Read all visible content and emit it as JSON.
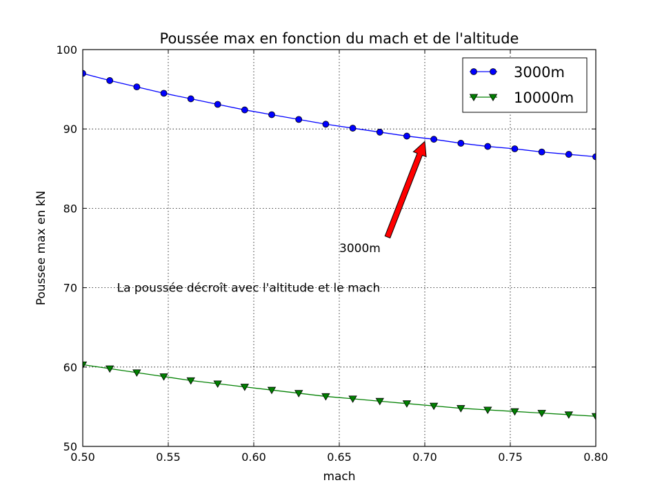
{
  "chart_data": {
    "type": "line",
    "title": "Poussée max en fonction du mach et de l'altitude",
    "xlabel": "mach",
    "ylabel": "Poussee max en kN",
    "xlim": [
      0.5,
      0.8
    ],
    "ylim": [
      50,
      100
    ],
    "grid": true,
    "legend_position": "top-right",
    "xticks": [
      "0.50",
      "0.55",
      "0.60",
      "0.65",
      "0.70",
      "0.75",
      "0.80"
    ],
    "yticks": [
      "50",
      "60",
      "70",
      "80",
      "90",
      "100"
    ],
    "x": [
      0.5,
      0.5158,
      0.5316,
      0.5474,
      0.5632,
      0.5789,
      0.5947,
      0.6105,
      0.6263,
      0.6421,
      0.6579,
      0.6737,
      0.6895,
      0.7053,
      0.7211,
      0.7368,
      0.7526,
      0.7684,
      0.7842,
      0.8
    ],
    "series": [
      {
        "name": "3000m",
        "color": "#0000ff",
        "marker": "circle",
        "values": [
          97.0,
          96.1,
          95.3,
          94.5,
          93.8,
          93.1,
          92.4,
          91.8,
          91.2,
          90.6,
          90.1,
          89.6,
          89.1,
          88.7,
          88.2,
          87.8,
          87.5,
          87.1,
          86.8,
          86.5
        ]
      },
      {
        "name": "10000m",
        "color": "#008000",
        "marker": "triangle-down",
        "values": [
          60.3,
          59.8,
          59.3,
          58.8,
          58.3,
          57.9,
          57.5,
          57.1,
          56.7,
          56.3,
          56.0,
          55.7,
          55.4,
          55.1,
          54.8,
          54.6,
          54.4,
          54.2,
          54.0,
          53.8
        ]
      }
    ],
    "annotations": [
      {
        "text": "3000m",
        "x": 0.65,
        "y": 75,
        "arrow_to": {
          "x": 0.7,
          "y": 88.6
        },
        "arrow_color": "#ff0000"
      },
      {
        "text": "La poussée décroît avec l'altitude et le mach",
        "x": 0.52,
        "y": 70
      }
    ]
  }
}
